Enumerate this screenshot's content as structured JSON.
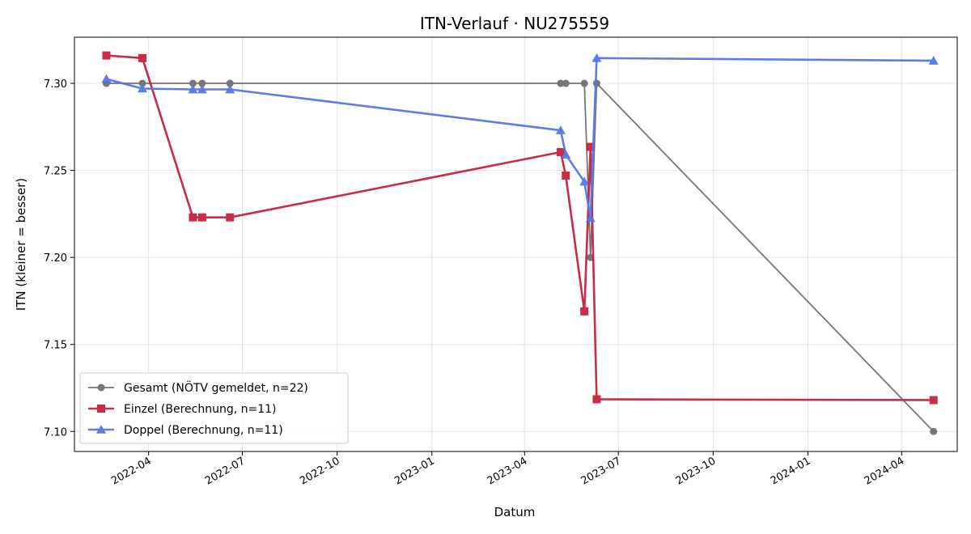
{
  "chart_data": {
    "type": "line",
    "title": "ITN-Verlauf · NU275559",
    "xlabel": "Datum",
    "ylabel": "ITN  (kleiner = besser)",
    "x_tick_labels": [
      "2022-04",
      "2022-07",
      "2022-10",
      "2023-01",
      "2023-04",
      "2023-07",
      "2023-10",
      "2024-01",
      "2024-04"
    ],
    "y_tick_labels": [
      "7.10",
      "7.15",
      "7.20",
      "7.25",
      "7.30"
    ],
    "xlim": [
      "2022-01-19",
      "2024-05-25"
    ],
    "ylim": [
      7.0885,
      7.3265
    ],
    "y_ticks": [
      7.1,
      7.15,
      7.2,
      7.25,
      7.3
    ],
    "grid": true,
    "legend_position": "lower-left",
    "series": [
      {
        "name": "Gesamt (NÖTV gemeldet, n=22)",
        "color": "#555555",
        "marker": "circle",
        "points": [
          {
            "x": "2022-02-19",
            "y": 7.3
          },
          {
            "x": "2022-03-26",
            "y": 7.3
          },
          {
            "x": "2022-05-14",
            "y": 7.3
          },
          {
            "x": "2022-05-23",
            "y": 7.3
          },
          {
            "x": "2022-06-19",
            "y": 7.3
          },
          {
            "x": "2023-05-06",
            "y": 7.3
          },
          {
            "x": "2023-05-11",
            "y": 7.3
          },
          {
            "x": "2023-05-29",
            "y": 7.3
          },
          {
            "x": "2023-06-04",
            "y": 7.2
          },
          {
            "x": "2023-06-10",
            "y": 7.3
          },
          {
            "x": "2024-05-02",
            "y": 7.1
          }
        ]
      },
      {
        "name": "Einzel (Berechnung, n=11)",
        "color": "#c8203c",
        "marker": "square",
        "points": [
          {
            "x": "2022-02-19",
            "y": 7.316
          },
          {
            "x": "2022-03-26",
            "y": 7.3145
          },
          {
            "x": "2022-05-14",
            "y": 7.223
          },
          {
            "x": "2022-05-23",
            "y": 7.223
          },
          {
            "x": "2022-06-19",
            "y": 7.223
          },
          {
            "x": "2023-05-06",
            "y": 7.2605
          },
          {
            "x": "2023-05-11",
            "y": 7.247
          },
          {
            "x": "2023-05-29",
            "y": 7.169
          },
          {
            "x": "2023-06-04",
            "y": 7.2635
          },
          {
            "x": "2023-06-10",
            "y": 7.1185
          },
          {
            "x": "2024-05-02",
            "y": 7.118
          }
        ]
      },
      {
        "name": "Doppel (Berechnung, n=11)",
        "color": "#5575e8",
        "marker": "triangle",
        "points": [
          {
            "x": "2022-02-19",
            "y": 7.3025
          },
          {
            "x": "2022-03-26",
            "y": 7.297
          },
          {
            "x": "2022-05-14",
            "y": 7.2965
          },
          {
            "x": "2022-05-23",
            "y": 7.2965
          },
          {
            "x": "2022-06-19",
            "y": 7.2965
          },
          {
            "x": "2023-05-06",
            "y": 7.273
          },
          {
            "x": "2023-05-11",
            "y": 7.259
          },
          {
            "x": "2023-05-29",
            "y": 7.2435
          },
          {
            "x": "2023-06-04",
            "y": 7.2225
          },
          {
            "x": "2023-06-10",
            "y": 7.3145
          },
          {
            "x": "2024-05-02",
            "y": 7.313
          }
        ]
      }
    ]
  }
}
